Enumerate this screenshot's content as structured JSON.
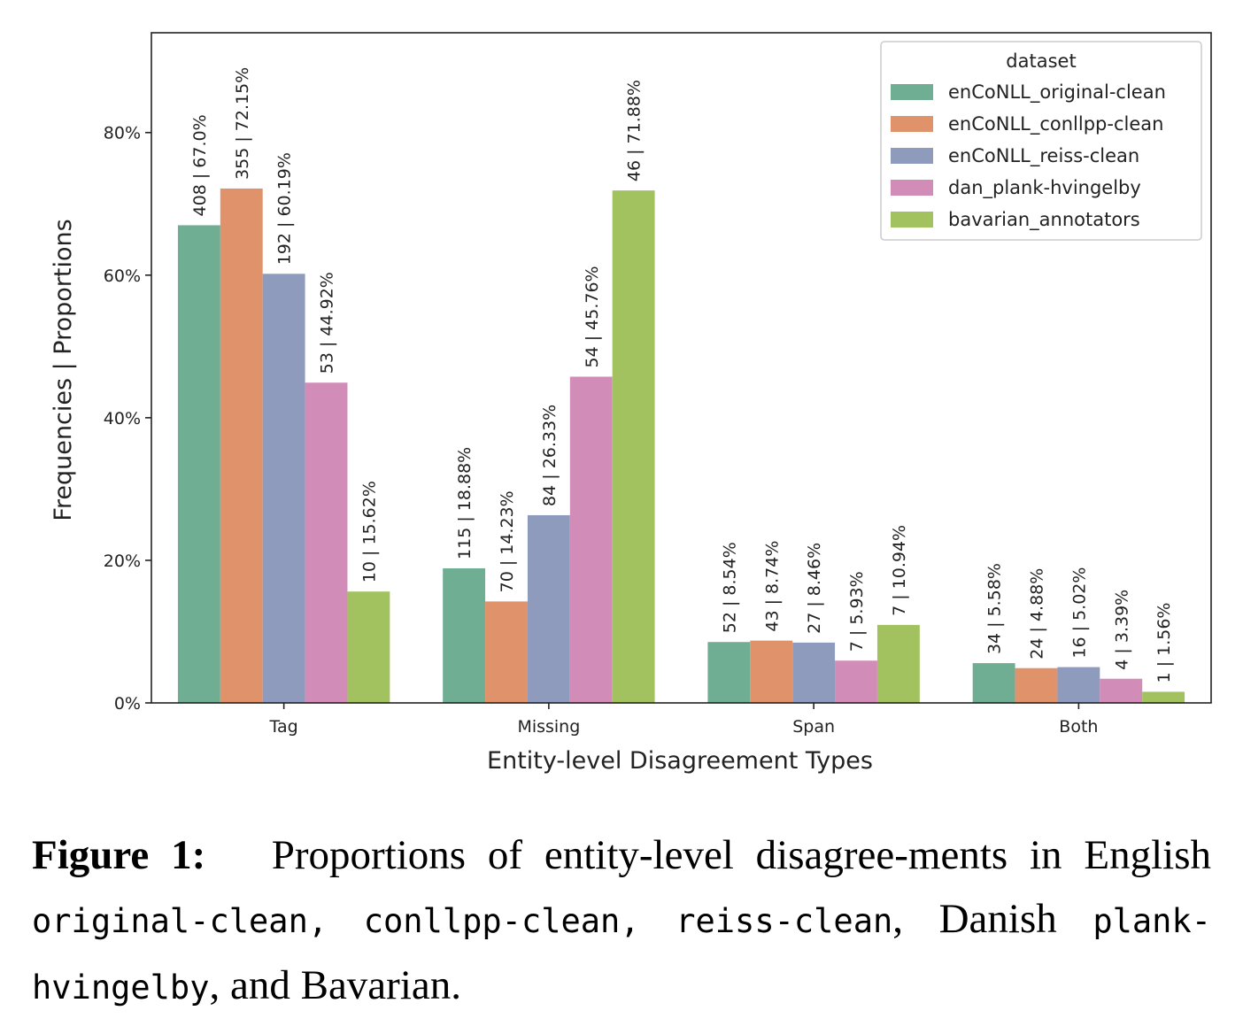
{
  "chart_data": {
    "type": "bar",
    "categories": [
      "Tag",
      "Missing",
      "Span",
      "Both"
    ],
    "xlabel": "Entity-level Disagreement Types",
    "ylabel": "Frequencies | Proportions",
    "ylim": [
      0,
      94
    ],
    "yticks": [
      0,
      20,
      40,
      60,
      80
    ],
    "ytick_labels": [
      "0%",
      "20%",
      "40%",
      "60%",
      "80%"
    ],
    "grid": false,
    "legend": {
      "title": "dataset",
      "placement": "top-right"
    },
    "series": [
      {
        "name": "enCoNLL_original-clean",
        "color": "#6fae93",
        "values": [
          67.0,
          18.88,
          8.54,
          5.58
        ],
        "labels": [
          "408 | 67.0%",
          "115 | 18.88%",
          "52 | 8.54%",
          "34 | 5.58%"
        ]
      },
      {
        "name": "enCoNLL_conllpp-clean",
        "color": "#e0926a",
        "values": [
          72.15,
          14.23,
          8.74,
          4.88
        ],
        "labels": [
          "355 | 72.15%",
          "70 | 14.23%",
          "43 | 8.74%",
          "24 | 4.88%"
        ]
      },
      {
        "name": "enCoNLL_reiss-clean",
        "color": "#8f9bbd",
        "values": [
          60.19,
          26.33,
          8.46,
          5.02
        ],
        "labels": [
          "192 | 60.19%",
          "84 | 26.33%",
          "27 | 8.46%",
          "16 | 5.02%"
        ]
      },
      {
        "name": "dan_plank-hvingelby",
        "color": "#d28cb8",
        "values": [
          44.92,
          45.76,
          5.93,
          3.39
        ],
        "labels": [
          "53 | 44.92%",
          "54 | 45.76%",
          "7 | 5.93%",
          "4 | 3.39%"
        ]
      },
      {
        "name": "bavarian_annotators",
        "color": "#a2c25f",
        "values": [
          15.62,
          71.88,
          10.94,
          1.56
        ],
        "labels": [
          "10 | 15.62%",
          "46 | 71.88%",
          "7 | 10.94%",
          "1 | 1.56%"
        ]
      }
    ]
  },
  "caption": {
    "label": "Figure 1:",
    "text_1": "Proportions of entity-level disagree-ments in English",
    "code_1": "original-clean",
    "sep_1": ",",
    "code_2": "conllpp-clean",
    "sep_2": ",",
    "code_3": "reiss-clean",
    "text_2": ", Danish",
    "code_4": "plank-hvingelby",
    "text_3": ", and Bavarian."
  }
}
